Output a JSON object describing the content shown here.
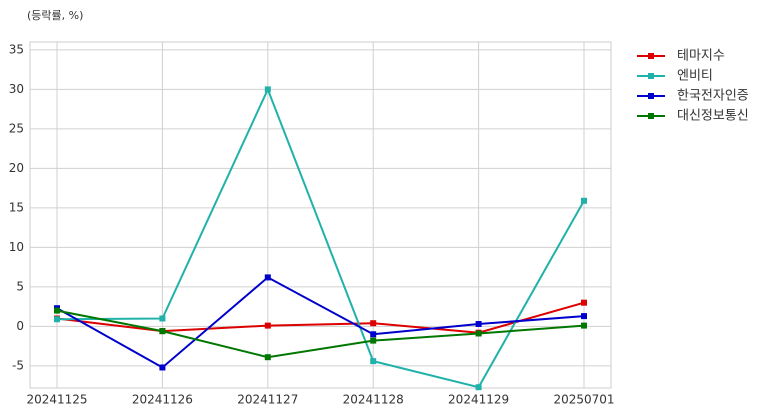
{
  "chart_data": {
    "type": "line",
    "unit_label": "(등락률, %)",
    "categories": [
      "20241125",
      "20241126",
      "20241127",
      "20241128",
      "20241129",
      "20250701"
    ],
    "series": [
      {
        "name": "테마지수",
        "color": "#dd0000",
        "values": [
          1.0,
          -0.6,
          0.1,
          0.4,
          -0.8,
          3.0
        ]
      },
      {
        "name": "엔비티",
        "color": "#20b2aa",
        "values": [
          0.9,
          1.0,
          30.0,
          -4.4,
          -7.7,
          15.9
        ]
      },
      {
        "name": "한국전자인증",
        "color": "#0000cc",
        "values": [
          2.3,
          -5.2,
          6.2,
          -1.0,
          0.3,
          1.3
        ]
      },
      {
        "name": "대신정보통신",
        "color": "#007700",
        "values": [
          2.0,
          -0.6,
          -3.9,
          -1.8,
          -0.9,
          0.1
        ]
      }
    ],
    "ylim": [
      -7.8,
      36
    ],
    "yticks": [
      -5,
      0,
      5,
      10,
      15,
      20,
      25,
      30,
      35
    ],
    "grid": true,
    "legend": "right"
  }
}
